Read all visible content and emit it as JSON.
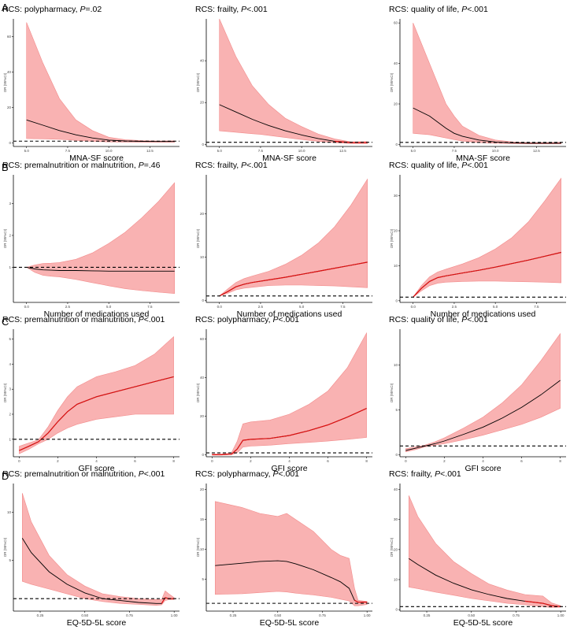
{
  "figure": {
    "row_letters": [
      "A",
      "B",
      "C",
      "D"
    ],
    "y_axis_label": "OR (95%CI)"
  },
  "chart_data": [
    {
      "type": "line",
      "row": 0,
      "col": 0,
      "title_prefix": "RCS: polypharmacy, ",
      "p_label": "P",
      "p_value": "=.02",
      "xlabel": "MNA-SF score",
      "ylabel": "OR (95%CI)",
      "xlim": [
        4.2,
        14.3
      ],
      "ylim": [
        -2,
        70
      ],
      "xticks": [
        "5.0",
        "7.5",
        "10.0",
        "12.5"
      ],
      "xtick_values": [
        5,
        7.5,
        10,
        12.5
      ],
      "yticks": [
        "0",
        "20",
        "40",
        "60"
      ],
      "ytick_values": [
        0,
        20,
        40,
        60
      ],
      "ref": 1,
      "x": [
        5,
        6,
        7,
        7.5,
        8,
        9,
        10,
        11,
        12,
        13,
        14
      ],
      "y": [
        13,
        10,
        7,
        5.8,
        4.6,
        2.8,
        1.6,
        1.1,
        0.9,
        0.8,
        0.8
      ],
      "upper": [
        68,
        45,
        25,
        19,
        13,
        7,
        3.2,
        1.8,
        1.3,
        1.1,
        1.2
      ],
      "lower": [
        2.5,
        2.3,
        2.0,
        1.8,
        1.4,
        0.9,
        0.6,
        0.5,
        0.4,
        0.4,
        0.4
      ],
      "red_from_index": null
    },
    {
      "type": "line",
      "row": 0,
      "col": 1,
      "title_prefix": "RCS: frailty, ",
      "p_label": "P",
      "p_value": "<.001",
      "xlabel": "MNA-SF score",
      "ylabel": "OR (95%CI)",
      "xlim": [
        4.2,
        14.3
      ],
      "ylim": [
        -1,
        60
      ],
      "xticks": [
        "5.0",
        "7.5",
        "10.0",
        "12.5"
      ],
      "xtick_values": [
        5,
        7.5,
        10,
        12.5
      ],
      "yticks": [
        "0",
        "20",
        "40"
      ],
      "ytick_values": [
        0,
        20,
        40
      ],
      "ref": 1,
      "x": [
        5,
        6,
        7,
        7.5,
        8,
        9,
        10,
        11,
        12,
        13,
        14
      ],
      "y": [
        19,
        15.5,
        12,
        10.5,
        9,
        6.5,
        4.5,
        2.8,
        1.5,
        0.9,
        0.9
      ],
      "upper": [
        60,
        42,
        28,
        23.5,
        19,
        12.5,
        8.5,
        5,
        2.6,
        1.2,
        1.3
      ],
      "lower": [
        6.5,
        5.8,
        5.1,
        4.8,
        4.3,
        3.3,
        2.3,
        1.5,
        0.8,
        0.4,
        0.4
      ],
      "red_from_index": 8
    },
    {
      "type": "line",
      "row": 0,
      "col": 2,
      "title_prefix": "RCS: quality of life, ",
      "p_label": "P",
      "p_value": "<.001",
      "xlabel": "MNA-SF score",
      "ylabel": "OR (95%CI)",
      "xlim": [
        4.2,
        14.3
      ],
      "ylim": [
        -1,
        62
      ],
      "xticks": [
        "5.0",
        "7.5",
        "10.0",
        "12.5"
      ],
      "xtick_values": [
        5,
        7.5,
        10,
        12.5
      ],
      "yticks": [
        "0",
        "20",
        "40",
        "60"
      ],
      "ytick_values": [
        0,
        20,
        40,
        60
      ],
      "ref": 1,
      "x": [
        5,
        6,
        7,
        7.5,
        8,
        9,
        10,
        11,
        12,
        13,
        14
      ],
      "y": [
        18,
        14,
        8,
        5.5,
        4,
        2.2,
        1.2,
        0.8,
        0.6,
        0.6,
        0.6
      ],
      "upper": [
        60,
        40,
        20,
        14,
        9,
        4.5,
        2.2,
        1.3,
        1.0,
        1.0,
        1.1
      ],
      "lower": [
        5.5,
        4.8,
        3.2,
        2.4,
        1.7,
        0.9,
        0.6,
        0.4,
        0.3,
        0.3,
        0.3
      ],
      "red_from_index": null
    },
    {
      "type": "line",
      "row": 1,
      "col": 0,
      "title_prefix": "RCS: premalnutrition or malnutrition, ",
      "p_label": "P",
      "p_value": "=.46",
      "xlabel": "Number of medications used",
      "ylabel": "OR (95%CI)",
      "xlim": [
        -0.8,
        9.3
      ],
      "ylim": [
        -0.1,
        3.9
      ],
      "xticks": [
        "0.0",
        "2.5",
        "5.0",
        "7.5"
      ],
      "xtick_values": [
        0,
        2.5,
        5,
        7.5
      ],
      "yticks": [
        "1",
        "2",
        "3"
      ],
      "ytick_values": [
        1,
        2,
        3
      ],
      "ref": 1,
      "x": [
        0,
        0.5,
        1,
        1.5,
        2,
        3,
        4,
        5,
        6,
        7,
        8,
        9
      ],
      "y": [
        1,
        0.95,
        0.92,
        0.91,
        0.9,
        0.9,
        0.89,
        0.88,
        0.88,
        0.88,
        0.88,
        0.88
      ],
      "upper": [
        1,
        1.07,
        1.12,
        1.13,
        1.15,
        1.25,
        1.45,
        1.75,
        2.1,
        2.55,
        3.05,
        3.65
      ],
      "lower": [
        1,
        0.84,
        0.75,
        0.72,
        0.7,
        0.62,
        0.52,
        0.42,
        0.33,
        0.27,
        0.22,
        0.18
      ],
      "red_from_index": null
    },
    {
      "type": "line",
      "row": 1,
      "col": 1,
      "title_prefix": "RCS: frailty, ",
      "p_label": "P",
      "p_value": "<.001",
      "xlabel": "Number of medications used",
      "ylabel": "OR (95%CI)",
      "xlim": [
        -0.8,
        9.3
      ],
      "ylim": [
        -0.5,
        29
      ],
      "xticks": [
        "0.0",
        "2.5",
        "5.0",
        "7.5"
      ],
      "xtick_values": [
        0,
        2.5,
        5,
        7.5
      ],
      "yticks": [
        "0",
        "10",
        "20"
      ],
      "ytick_values": [
        0,
        10,
        20
      ],
      "ref": 1,
      "x": [
        0,
        0.5,
        1,
        1.5,
        2,
        3,
        4,
        5,
        6,
        7,
        8,
        9
      ],
      "y": [
        1,
        2,
        3.1,
        3.7,
        4.1,
        4.7,
        5.3,
        6,
        6.7,
        7.4,
        8.1,
        8.8
      ],
      "upper": [
        1,
        2.6,
        4.1,
        5,
        5.6,
        6.7,
        8.3,
        10.4,
        13.2,
        17,
        22,
        28
      ],
      "lower": [
        1,
        1.6,
        2.4,
        2.8,
        3.0,
        3.4,
        3.5,
        3.5,
        3.4,
        3.3,
        3.1,
        2.9
      ],
      "red_from_index": 0
    },
    {
      "type": "line",
      "row": 1,
      "col": 2,
      "title_prefix": "RCS: quality of life, ",
      "p_label": "P",
      "p_value": "<.001",
      "xlabel": "Number of medications used",
      "ylabel": "OR (95%CI)",
      "xlim": [
        -0.8,
        9.3
      ],
      "ylim": [
        -0.5,
        36
      ],
      "xticks": [
        "0.0",
        "2.5",
        "5.0",
        "7.5"
      ],
      "xtick_values": [
        0,
        2.5,
        5,
        7.5
      ],
      "yticks": [
        "0",
        "10",
        "20",
        "30"
      ],
      "ytick_values": [
        0,
        10,
        20,
        30
      ],
      "ref": 1,
      "x": [
        0,
        0.5,
        1,
        1.5,
        2,
        3,
        4,
        5,
        6,
        7,
        8,
        9
      ],
      "y": [
        1,
        3.5,
        5.5,
        6.6,
        7.1,
        7.9,
        8.7,
        9.6,
        10.6,
        11.6,
        12.7,
        13.8
      ],
      "upper": [
        1,
        4.3,
        6.8,
        8.2,
        9.0,
        10.5,
        12.3,
        14.8,
        18,
        22.5,
        28.5,
        35
      ],
      "lower": [
        1,
        2.8,
        4.3,
        5.0,
        5.3,
        5.5,
        5.6,
        5.6,
        5.5,
        5.4,
        5.3,
        5.1
      ],
      "red_from_index": 0
    },
    {
      "type": "line",
      "row": 2,
      "col": 0,
      "title_prefix": "RCS: premalnutrition or malnutrition, ",
      "p_label": "P",
      "p_value": "<.001",
      "xlabel": "GFI score",
      "ylabel": "OR (95%CI)",
      "xlim": [
        -0.3,
        8.3
      ],
      "ylim": [
        0.3,
        5.4
      ],
      "xticks": [
        "0",
        "2",
        "4",
        "6",
        "8"
      ],
      "xtick_values": [
        0,
        2,
        4,
        6,
        8
      ],
      "yticks": [
        "1",
        "2",
        "3",
        "4",
        "5"
      ],
      "ytick_values": [
        1,
        2,
        3,
        4,
        5
      ],
      "ref": 1,
      "x": [
        0,
        0.5,
        1,
        1.5,
        2,
        2.5,
        3,
        4,
        5,
        6,
        7,
        8
      ],
      "y": [
        0.55,
        0.72,
        0.9,
        1.25,
        1.7,
        2.1,
        2.4,
        2.7,
        2.9,
        3.1,
        3.3,
        3.5
      ],
      "upper": [
        0.72,
        0.85,
        0.98,
        1.5,
        2.15,
        2.7,
        3.1,
        3.5,
        3.7,
        3.95,
        4.4,
        5.1
      ],
      "lower": [
        0.42,
        0.6,
        0.82,
        1.0,
        1.25,
        1.45,
        1.6,
        1.8,
        1.9,
        2.0,
        2.0,
        2.0
      ],
      "red_from_index": 0
    },
    {
      "type": "line",
      "row": 2,
      "col": 1,
      "title_prefix": "RCS: polypharmacy, ",
      "p_label": "P",
      "p_value": "<.001",
      "xlabel": "GFI score",
      "ylabel": "OR (95%CI)",
      "xlim": [
        -0.3,
        8.3
      ],
      "ylim": [
        -1,
        65
      ],
      "xticks": [
        "0",
        "2",
        "4",
        "6",
        "8"
      ],
      "xtick_values": [
        0,
        2,
        4,
        6,
        8
      ],
      "yticks": [
        "0",
        "20",
        "40",
        "60"
      ],
      "ytick_values": [
        0,
        20,
        40,
        60
      ],
      "ref": 1,
      "x": [
        0,
        0.5,
        1,
        1.3,
        1.6,
        2,
        3,
        4,
        5,
        6,
        7,
        8
      ],
      "y": [
        0,
        0,
        0.3,
        3,
        7.5,
        8,
        8.5,
        10,
        12.5,
        15.5,
        19.5,
        24
      ],
      "upper": [
        0.4,
        0.5,
        1,
        7,
        16,
        17,
        18,
        21,
        26,
        33,
        45,
        63
      ],
      "lower": [
        0,
        0,
        0.1,
        1,
        4,
        4.5,
        5,
        5.8,
        6.4,
        7.1,
        8,
        9
      ],
      "red_from_index": 0
    },
    {
      "type": "line",
      "row": 2,
      "col": 2,
      "title_prefix": "RCS: quality of life, ",
      "p_label": "P",
      "p_value": "<.001",
      "xlabel": "GFI score",
      "ylabel": "OR (95%CI)",
      "xlim": [
        -0.3,
        8.3
      ],
      "ylim": [
        -0.2,
        14
      ],
      "xticks": [
        "0",
        "2",
        "4",
        "6",
        "8"
      ],
      "xtick_values": [
        0,
        2,
        4,
        6,
        8
      ],
      "yticks": [
        "0",
        "5",
        "10"
      ],
      "ytick_values": [
        0,
        5,
        10
      ],
      "ref": 1,
      "x": [
        0,
        0.5,
        1,
        1.5,
        2,
        3,
        4,
        5,
        6,
        7,
        8
      ],
      "y": [
        0.5,
        0.75,
        1,
        1.25,
        1.55,
        2.3,
        3.1,
        4.1,
        5.3,
        6.7,
        8.3
      ],
      "upper": [
        0.7,
        0.9,
        1.1,
        1.45,
        1.9,
        3,
        4.2,
        5.8,
        7.8,
        10.5,
        13.5
      ],
      "lower": [
        0.35,
        0.6,
        0.9,
        1.1,
        1.25,
        1.7,
        2.2,
        2.8,
        3.4,
        4.2,
        5.2
      ],
      "red_from_index": null
    },
    {
      "type": "line",
      "row": 3,
      "col": 0,
      "title_prefix": "RCS: premalnutrition or malnutrition, ",
      "p_label": "P",
      "p_value": "<.001",
      "xlabel": "EQ-5D-5L score",
      "ylabel": "OR (95%CI)",
      "xlim": [
        0.1,
        1.03
      ],
      "ylim": [
        -0.3,
        13
      ],
      "xticks": [
        "0.25",
        "0.50",
        "0.75",
        "1.00"
      ],
      "xtick_values": [
        0.25,
        0.5,
        0.75,
        1
      ],
      "yticks": [
        "5",
        "10"
      ],
      "ytick_values": [
        5,
        10
      ],
      "ref": 1,
      "x": [
        0.15,
        0.2,
        0.3,
        0.4,
        0.5,
        0.6,
        0.7,
        0.8,
        0.9,
        0.93,
        0.95,
        0.97,
        1.0
      ],
      "y": [
        7.3,
        5.8,
        3.8,
        2.5,
        1.6,
        1.0,
        0.8,
        0.6,
        0.5,
        0.5,
        1.1,
        1.0,
        1.0
      ],
      "upper": [
        12,
        9,
        5.5,
        3.5,
        2.3,
        1.5,
        1.2,
        1.0,
        0.9,
        0.9,
        1.8,
        1.5,
        1.1
      ],
      "lower": [
        2.8,
        2.5,
        2.0,
        1.5,
        1.0,
        0.7,
        0.5,
        0.4,
        0.3,
        0.35,
        0.8,
        0.9,
        0.9
      ],
      "red_from_index": 9
    },
    {
      "type": "line",
      "row": 3,
      "col": 1,
      "title_prefix": "RCS: polypharmacy, ",
      "p_label": "P",
      "p_value": "<.001",
      "xlabel": "EQ-5D-5L score",
      "ylabel": "OR (95%CI)",
      "xlim": [
        0.1,
        1.03
      ],
      "ylim": [
        -0.3,
        21
      ],
      "xticks": [
        "0.25",
        "0.50",
        "0.75",
        "1.00"
      ],
      "xtick_values": [
        0.25,
        0.5,
        0.75,
        1
      ],
      "yticks": [
        "5",
        "10",
        "15",
        "20"
      ],
      "ytick_values": [
        5,
        10,
        15,
        20
      ],
      "ref": 1,
      "x": [
        0.15,
        0.3,
        0.4,
        0.5,
        0.55,
        0.6,
        0.7,
        0.8,
        0.85,
        0.9,
        0.93,
        0.95,
        1.0
      ],
      "y": [
        7.3,
        7.7,
        8.0,
        8.1,
        8.0,
        7.6,
        6.6,
        5.3,
        4.6,
        3.5,
        1.5,
        1.2,
        1.2
      ],
      "upper": [
        18,
        17,
        16,
        15.5,
        16,
        15,
        13,
        10,
        9,
        8.5,
        3.5,
        1.5,
        1.3
      ],
      "lower": [
        2.5,
        2.6,
        2.8,
        3.0,
        2.9,
        2.7,
        2.4,
        2.0,
        1.7,
        1.4,
        0.6,
        0.6,
        0.8
      ],
      "red_from_index": 10
    },
    {
      "type": "line",
      "row": 3,
      "col": 2,
      "title_prefix": "RCS: frailty, ",
      "p_label": "P",
      "p_value": "<.001",
      "xlabel": "EQ-5D-5L score",
      "ylabel": "OR (95%CI)",
      "xlim": [
        0.1,
        1.03
      ],
      "ylim": [
        -0.5,
        42
      ],
      "xticks": [
        "0.25",
        "0.50",
        "0.75",
        "1.00"
      ],
      "xtick_values": [
        0.25,
        0.5,
        0.75,
        1
      ],
      "yticks": [
        "0",
        "10",
        "20",
        "30",
        "40"
      ],
      "ytick_values": [
        0,
        10,
        20,
        30,
        40
      ],
      "ref": 1,
      "x": [
        0.15,
        0.2,
        0.3,
        0.4,
        0.5,
        0.6,
        0.7,
        0.8,
        0.9,
        0.95,
        1.0
      ],
      "y": [
        17,
        15,
        11.5,
        8.8,
        6.6,
        5.0,
        3.7,
        2.8,
        2.1,
        1.3,
        1.0
      ],
      "upper": [
        38,
        31,
        22,
        16,
        12,
        8.5,
        6.5,
        5,
        4.5,
        2.2,
        1.3
      ],
      "lower": [
        7.5,
        7,
        5.8,
        4.8,
        3.7,
        2.9,
        2.1,
        1.6,
        1.0,
        0.7,
        0.8
      ],
      "red_from_index": 7
    }
  ]
}
